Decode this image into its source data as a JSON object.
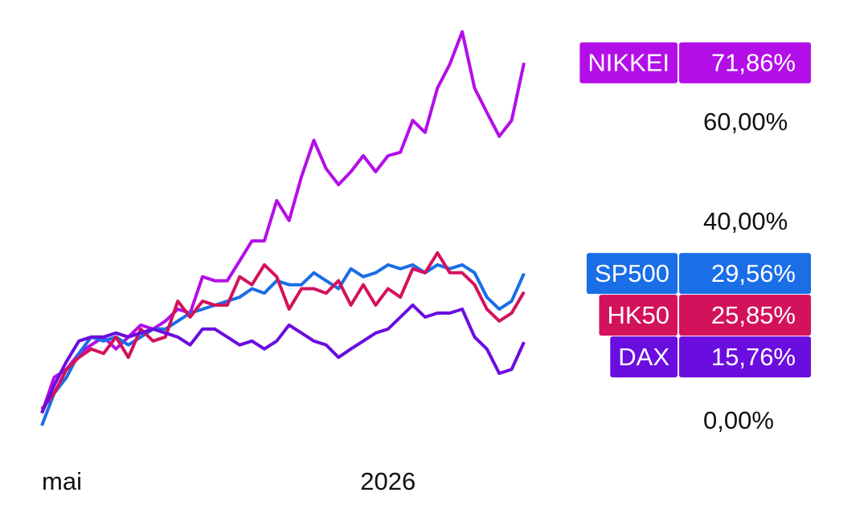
{
  "chart_data": {
    "type": "line",
    "categories": [
      "mai",
      null,
      null,
      null,
      null,
      null,
      null,
      null,
      null,
      null,
      null,
      null,
      null,
      null,
      null,
      null,
      null,
      null,
      null,
      null,
      null,
      null,
      null,
      null,
      null,
      null,
      null,
      null,
      "2026",
      null,
      null,
      null,
      null,
      null,
      null,
      null,
      null,
      null,
      null,
      null
    ],
    "ylim": [
      -4,
      84
    ],
    "yticks": [
      {
        "value": 0,
        "label": "0,00%"
      },
      {
        "value": 40,
        "label": "40,00%"
      },
      {
        "value": 60,
        "label": "60,00%"
      }
    ],
    "grid": false,
    "series": [
      {
        "name": "NIKKEI",
        "color": "#b40ee8",
        "values": [
          1.5,
          8.7,
          10.3,
          13.5,
          15.2,
          16.8,
          14.4,
          16.8,
          19.2,
          18.4,
          20,
          22.4,
          21.6,
          28.9,
          28.1,
          28.1,
          32.1,
          36.1,
          36.1,
          44.2,
          40.2,
          49,
          56.3,
          50.6,
          47.4,
          50,
          53.2,
          50,
          53.2,
          53.9,
          60.3,
          57.9,
          66.8,
          71.6,
          78.1,
          66.8,
          61.9,
          57.1,
          60.3,
          71.86
        ],
        "value_labels": [
          null,
          null,
          null,
          null,
          null,
          null,
          null,
          null,
          null,
          null,
          null,
          null,
          null,
          null,
          null,
          null,
          null,
          null,
          null,
          null,
          null,
          null,
          null,
          null,
          null,
          null,
          null,
          null,
          null,
          null,
          null,
          null,
          null,
          null,
          null,
          null,
          null,
          null,
          null,
          "71,86%"
        ]
      },
      {
        "name": "SP500",
        "color": "#1a6ee6",
        "values": [
          -1,
          5.5,
          8.7,
          13.5,
          16.8,
          16,
          16.8,
          15.2,
          16.8,
          18.4,
          18.4,
          20,
          21.6,
          22.4,
          23.2,
          24,
          24.8,
          26.5,
          25.6,
          28.1,
          27.3,
          27.3,
          29.7,
          28.1,
          26.5,
          30.5,
          28.9,
          29.7,
          31.3,
          30.5,
          31.3,
          29.7,
          31.3,
          30.5,
          31.3,
          29.7,
          24.8,
          22.4,
          24,
          29.56
        ],
        "value_labels": [
          null,
          null,
          null,
          null,
          null,
          null,
          null,
          null,
          null,
          null,
          null,
          null,
          null,
          null,
          null,
          null,
          null,
          null,
          null,
          null,
          null,
          null,
          null,
          null,
          null,
          null,
          null,
          null,
          null,
          null,
          null,
          null,
          null,
          null,
          null,
          null,
          null,
          null,
          null,
          "29,56%"
        ]
      },
      {
        "name": "HK50",
        "color": "#d3125c",
        "values": [
          2.3,
          5.5,
          10.3,
          12.7,
          14.4,
          13.5,
          16.8,
          12.7,
          18.4,
          16,
          16.8,
          24,
          20.8,
          24,
          23.2,
          23.2,
          28.9,
          27.3,
          31.3,
          28.9,
          22.4,
          26.5,
          26.5,
          25.6,
          28.1,
          23.2,
          27.3,
          23.2,
          26.5,
          24.8,
          30.5,
          29.7,
          33.7,
          29.7,
          29.7,
          27.3,
          22.4,
          20,
          21.6,
          25.85
        ],
        "value_labels": [
          null,
          null,
          null,
          null,
          null,
          null,
          null,
          null,
          null,
          null,
          null,
          null,
          null,
          null,
          null,
          null,
          null,
          null,
          null,
          null,
          null,
          null,
          null,
          null,
          null,
          null,
          null,
          null,
          null,
          null,
          null,
          null,
          null,
          null,
          null,
          null,
          null,
          null,
          null,
          "25,85%"
        ]
      },
      {
        "name": "DAX",
        "color": "#6a0ddf",
        "values": [
          1.5,
          7.1,
          11.9,
          16,
          16.8,
          16.8,
          17.6,
          16.8,
          17.6,
          18.4,
          17.6,
          16.8,
          15.2,
          18.4,
          18.4,
          16.8,
          15.2,
          16,
          14.4,
          16,
          19.2,
          17.6,
          16,
          15.2,
          12.7,
          14.4,
          16,
          17.6,
          18.4,
          20.8,
          23.2,
          20.8,
          21.6,
          21.6,
          22.4,
          16.8,
          14.4,
          9.5,
          10.3,
          15.76
        ],
        "value_labels": [
          null,
          null,
          null,
          null,
          null,
          null,
          null,
          null,
          null,
          null,
          null,
          null,
          null,
          null,
          null,
          null,
          null,
          null,
          null,
          null,
          null,
          null,
          null,
          null,
          null,
          null,
          null,
          null,
          null,
          null,
          null,
          null,
          null,
          null,
          null,
          null,
          null,
          null,
          null,
          "15,76%"
        ]
      }
    ]
  }
}
